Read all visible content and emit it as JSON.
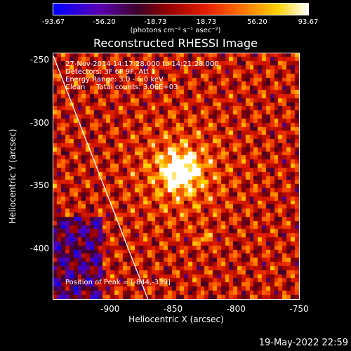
{
  "chart_data": {
    "type": "heatmap",
    "title": "Reconstructed RHESSI Image",
    "xlabel": "Heliocentric X (arcsec)",
    "ylabel": "Heliocentric Y (arcsec)",
    "xlim": [
      -945,
      -750
    ],
    "ylim": [
      -440,
      -245
    ],
    "x_ticks": [
      "-900",
      "-850",
      "-800",
      "-750"
    ],
    "x_tick_values": [
      -900,
      -850,
      -800,
      -750
    ],
    "y_ticks": [
      "-250",
      "-300",
      "-350",
      "-400"
    ],
    "y_tick_values": [
      -250,
      -300,
      -350,
      -400
    ],
    "colorbar": {
      "ticks": [
        "-93.67",
        "-56.20",
        "-18.73",
        "18.73",
        "56.20",
        "93.67"
      ],
      "tick_values": [
        -93.67,
        -56.2,
        -18.73,
        18.73,
        56.2,
        93.67
      ],
      "units": "(photons cm⁻² s⁻¹ asec⁻²)",
      "range": [
        -93.67,
        93.67
      ]
    },
    "peak": [
      -844,
      -339
    ],
    "limb_line": [
      [
        -945,
        -247
      ],
      [
        -870,
        -440
      ]
    ]
  },
  "info": {
    "line1": "27-Nov-2014 14:17:28.000 to 14:21:28.000",
    "line2": "Detectors: 3F 6F 9F, Att 1",
    "line3": "Energy Range: 3.0 - 6.0 keV",
    "line4": "Clean     Total counts: 3.06E+03",
    "peak_text": "Position of Peak = [-844,-339]"
  },
  "footer": {
    "timestamp": "19-May-2022 22:59"
  }
}
